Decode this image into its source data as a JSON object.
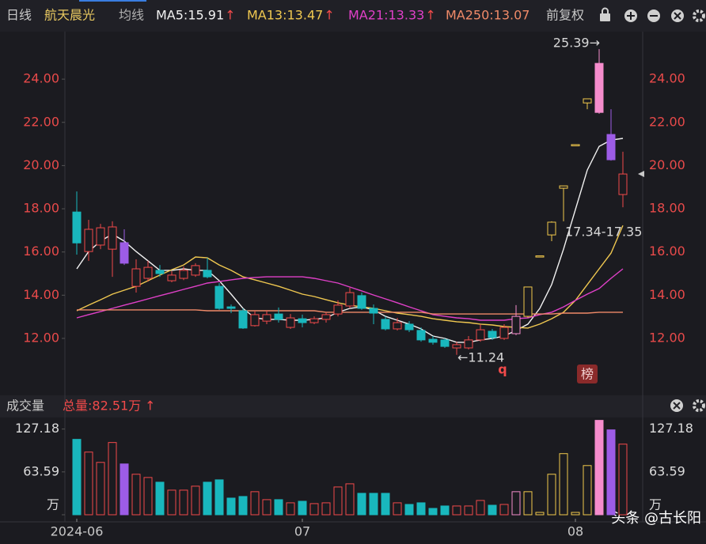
{
  "chart_data": [
    {
      "type": "candlestick",
      "period": "日线",
      "title": "航天晨光",
      "ma_label": "均线",
      "adjust": "前复权",
      "categories": [
        "2024-06",
        null,
        null,
        null,
        null,
        null,
        null,
        null,
        null,
        null,
        null,
        null,
        null,
        null,
        null,
        null,
        null,
        null,
        null,
        "07",
        null,
        null,
        null,
        null,
        null,
        null,
        null,
        null,
        null,
        null,
        null,
        null,
        null,
        null,
        null,
        null,
        null,
        null,
        null,
        null,
        null,
        null,
        "08",
        null,
        null,
        null,
        null
      ],
      "open": [
        17.85,
        16.02,
        16.32,
        16.13,
        16.43,
        14.41,
        14.78,
        15.15,
        14.67,
        14.78,
        14.93,
        15.15,
        14.41,
        13.46,
        13.28,
        12.59,
        12.8,
        13.13,
        12.51,
        12.91,
        12.73,
        12.88,
        13.13,
        13.5,
        13.98,
        13.39,
        12.88,
        12.44,
        12.66,
        12.37,
        11.96,
        11.93,
        11.56,
        11.56,
        11.93,
        12.33,
        12.0,
        12.22,
        13.02,
        15.82,
        16.79,
        18.95,
        20.97,
        22.9,
        22.46,
        21.44,
        18.66
      ],
      "high": [
        18.8,
        17.49,
        17.3,
        17.42,
        17.05,
        15.66,
        15.59,
        15.4,
        15.11,
        15.33,
        15.48,
        15.73,
        14.56,
        13.57,
        13.39,
        13.28,
        13.28,
        13.43,
        13.13,
        13.1,
        13.02,
        13.21,
        13.76,
        14.34,
        14.12,
        13.57,
        13.02,
        12.95,
        12.8,
        12.51,
        12.11,
        12.0,
        11.85,
        12.11,
        12.66,
        12.44,
        12.66,
        13.54,
        14.38,
        15.82,
        17.42,
        19.06,
        20.97,
        23.09,
        25.39,
        22.61,
        20.64
      ],
      "low": [
        15.88,
        15.59,
        16.13,
        14.85,
        15.4,
        14.12,
        14.63,
        14.85,
        14.6,
        14.7,
        14.85,
        14.78,
        13.32,
        13.17,
        12.44,
        12.55,
        12.66,
        12.73,
        12.44,
        12.51,
        12.66,
        12.73,
        13.02,
        13.39,
        13.32,
        12.66,
        12.37,
        12.37,
        12.29,
        11.85,
        11.71,
        11.56,
        11.24,
        11.49,
        11.85,
        11.93,
        11.93,
        12.15,
        12.95,
        15.82,
        16.5,
        17.42,
        20.97,
        22.61,
        22.4,
        20.23,
        18.07
      ],
      "close": [
        16.42,
        17.05,
        17.12,
        17.16,
        15.48,
        15.22,
        15.29,
        15.0,
        14.93,
        15.15,
        15.37,
        14.85,
        13.39,
        13.39,
        12.48,
        13.1,
        13.1,
        12.88,
        12.95,
        12.73,
        12.91,
        13.1,
        13.54,
        14.12,
        13.39,
        13.17,
        12.44,
        12.73,
        12.4,
        11.93,
        11.82,
        11.63,
        11.71,
        11.93,
        12.4,
        12.04,
        12.51,
        13.02,
        14.38,
        15.82,
        17.38,
        19.06,
        20.97,
        23.09,
        24.73,
        20.27,
        19.61
      ],
      "styles": [
        "down",
        "up",
        "up",
        "up",
        "purple",
        "up",
        "up",
        "down",
        "up",
        "up",
        "up",
        "down",
        "down",
        "down",
        "down",
        "up",
        "up",
        "down",
        "up",
        "down",
        "up",
        "up",
        "up",
        "up",
        "down",
        "down",
        "down",
        "up",
        "down",
        "down",
        "down",
        "down",
        "up",
        "up",
        "up",
        "down",
        "up",
        "pink",
        "yellow",
        "yellow",
        "yellow",
        "yellow",
        "yellow",
        "yellow",
        "pinkfill",
        "purple",
        "up"
      ],
      "palette": {
        "up": {
          "color": "#f24a4a",
          "filled": false
        },
        "down": {
          "color": "#19b7bd",
          "filled": true
        },
        "purple": {
          "color": "#9d5ce6",
          "filled": true
        },
        "yellow": {
          "color": "#f2c94c",
          "filled": false
        },
        "pink": {
          "color": "#f58ccc",
          "filled": false
        },
        "pinkfill": {
          "color": "#f58ccc",
          "filled": true
        }
      },
      "ma": [
        {
          "name": "MA5:15.91",
          "trend": "↑",
          "color": "#f2f2f2",
          "values": [
            15.22,
            16.02,
            16.5,
            16.83,
            16.5,
            16.02,
            15.59,
            15.15,
            15.15,
            15.22,
            15.15,
            15.15,
            14.67,
            14.05,
            13.39,
            12.95,
            12.88,
            12.88,
            12.84,
            12.84,
            12.88,
            12.95,
            13.21,
            13.39,
            13.46,
            13.32,
            13.02,
            12.84,
            12.66,
            12.44,
            12.11,
            12.0,
            11.82,
            11.82,
            11.93,
            12.0,
            12.11,
            12.37,
            12.66,
            13.39,
            14.49,
            16.13,
            17.96,
            19.79,
            20.89,
            21.18,
            21.26
          ]
        },
        {
          "name": "MA13:13.47",
          "trend": "↑",
          "color": "#f0c850",
          "values": [
            13.28,
            13.54,
            13.79,
            14.05,
            14.23,
            14.41,
            14.67,
            14.93,
            15.18,
            15.4,
            15.77,
            15.73,
            15.4,
            15.15,
            14.85,
            14.71,
            14.56,
            14.41,
            14.23,
            14.05,
            13.94,
            13.79,
            13.65,
            13.54,
            13.46,
            13.39,
            13.28,
            13.17,
            13.1,
            13.02,
            12.91,
            12.84,
            12.77,
            12.73,
            12.66,
            12.62,
            12.55,
            12.51,
            12.48,
            12.66,
            12.91,
            13.21,
            13.76,
            14.49,
            15.22,
            15.95,
            17.23
          ]
        },
        {
          "name": "MA21:13.33",
          "trend": "↑",
          "color": "#e040c8",
          "values": [
            12.95,
            13.1,
            13.24,
            13.39,
            13.54,
            13.68,
            13.83,
            13.98,
            14.12,
            14.27,
            14.41,
            14.56,
            14.63,
            14.71,
            14.78,
            14.82,
            14.85,
            14.85,
            14.85,
            14.85,
            14.78,
            14.67,
            14.56,
            14.38,
            14.2,
            14.01,
            13.83,
            13.65,
            13.46,
            13.28,
            13.1,
            13.02,
            12.95,
            12.91,
            12.84,
            12.84,
            12.84,
            12.91,
            12.95,
            13.1,
            13.21,
            13.46,
            13.76,
            14.05,
            14.31,
            14.78,
            15.22
          ]
        },
        {
          "name": "MA250:13.07",
          "color": "#f08a68",
          "values": [
            13.32,
            13.32,
            13.32,
            13.32,
            13.32,
            13.32,
            13.32,
            13.32,
            13.32,
            13.32,
            13.32,
            13.28,
            13.28,
            13.28,
            13.28,
            13.28,
            13.28,
            13.28,
            13.28,
            13.28,
            13.28,
            13.21,
            13.21,
            13.21,
            13.21,
            13.21,
            13.21,
            13.21,
            13.21,
            13.21,
            13.13,
            13.13,
            13.13,
            13.13,
            13.13,
            13.13,
            13.13,
            13.13,
            13.13,
            13.13,
            13.13,
            13.17,
            13.17,
            13.17,
            13.21,
            13.21,
            13.21
          ]
        }
      ],
      "ylim": [
        9.73,
        26.2
      ],
      "yticks": [
        {
          "value": 24,
          "label": "24.00"
        },
        {
          "value": 22,
          "label": "22.00"
        },
        {
          "value": 20,
          "label": "20.00"
        },
        {
          "value": 18,
          "label": "18.00"
        },
        {
          "value": 16,
          "label": "16.00"
        },
        {
          "value": 14,
          "label": "14.00"
        },
        {
          "value": 12,
          "label": "12.00"
        }
      ],
      "annotations": [
        "25.39→",
        "←11.24",
        "17.34-17.35",
        "q",
        "榜"
      ]
    },
    {
      "type": "bar",
      "title": "成交量",
      "total": "总量:82.51万",
      "trend": "↑",
      "values": [
        111.9,
        93.0,
        77.7,
        107.2,
        75.4,
        60.1,
        55.3,
        48.3,
        36.5,
        36.5,
        42.4,
        48.3,
        51.8,
        24.7,
        27.1,
        34.2,
        22.4,
        22.4,
        17.7,
        20.0,
        16.5,
        17.7,
        41.2,
        45.9,
        31.8,
        31.8,
        31.8,
        17.7,
        15.3,
        17.7,
        9.4,
        13.0,
        13.0,
        13.0,
        21.2,
        14.1,
        15.3,
        34.2,
        34.2,
        3.5,
        60.1,
        90.7,
        3.5,
        73.0,
        140.1,
        126.0,
        104.8
      ],
      "ylim": [
        0,
        142
      ],
      "yticks": [
        127.18,
        63.59,
        {
          "value": 0,
          "label": "万"
        }
      ]
    }
  ],
  "watermark": "头条 @古长阳"
}
